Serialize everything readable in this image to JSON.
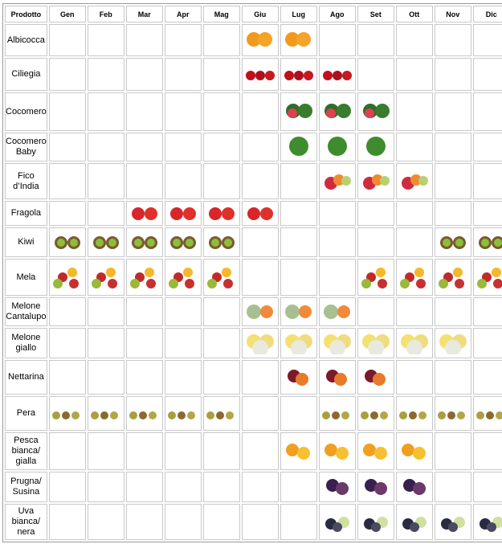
{
  "table": {
    "header": [
      "Prodotto",
      "Gen",
      "Feb",
      "Mar",
      "Apr",
      "Mag",
      "Giu",
      "Lug",
      "Ago",
      "Set",
      "Ott",
      "Nov",
      "Dic"
    ],
    "rows": [
      "Albicocca",
      "Ciliegia",
      "Cocomero",
      "Cocomero\nBaby",
      "Fico\nd’India",
      "Fragola",
      "Kiwi",
      "Mela",
      "Melone\nCantalupo",
      "Melone\ngiallo",
      "Nettarina",
      "Pera",
      "Pesca\nbianca/\ngialla",
      "Prugna/\nSusina",
      "Uva\nbianca/\nnera"
    ]
  }
}
